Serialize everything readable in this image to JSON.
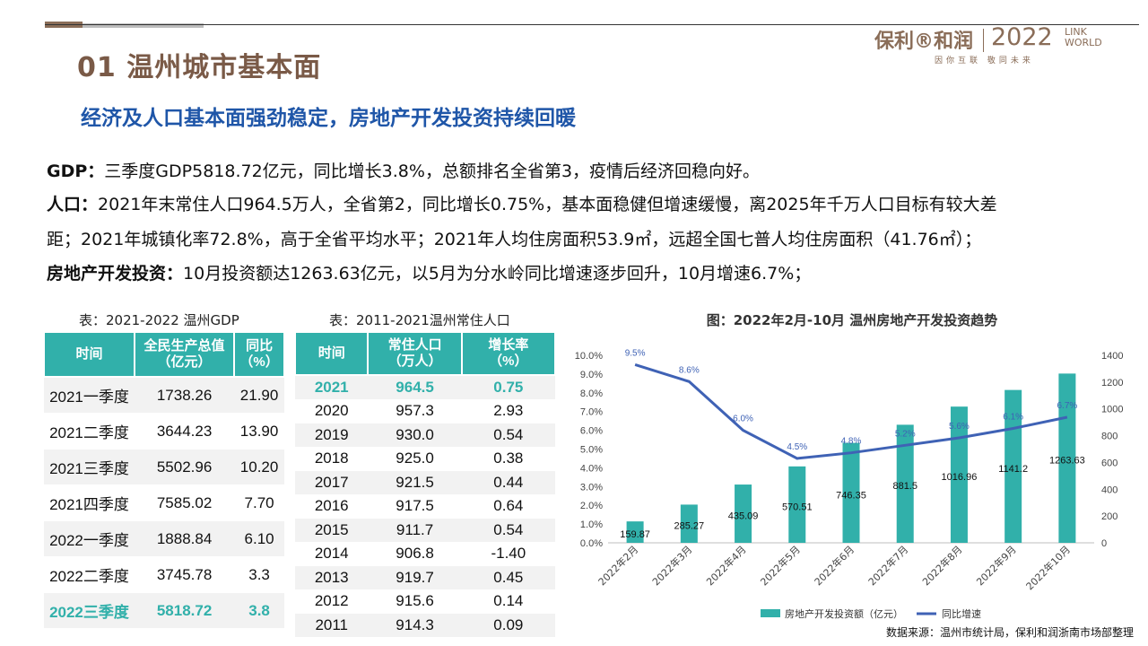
{
  "header": {
    "title": "01 温州城市基本面",
    "subtitle": "经济及人口基本面强劲稳定，房地产开发投资持续回暖",
    "logo": {
      "brand": "保利®和润",
      "year": "2022",
      "tag_line1": "LINK",
      "tag_line2": "WORLD",
      "slogan": "因你互联 敬同未来"
    }
  },
  "paragraphs": [
    {
      "label": "GDP：",
      "text": "三季度GDP5818.72亿元，同比增长3.8%，总额排名全省第3，疫情后经济回稳向好。"
    },
    {
      "label": "人口：",
      "text": "2021年末常住人口964.5万人，全省第2，同比增长0.75%，基本面稳健但增速缓慢，离2025年千万人口目标有较大差"
    },
    {
      "label": "",
      "text": "距；2021年城镇化率72.8%，高于全省平均水平；2021年人均住房面积53.9㎡，远超全国七普人均住房面积（41.76㎡）；"
    },
    {
      "label": "房地产开发投资：",
      "text": "10月投资额达1263.63亿元，以5月为分水岭同比增速逐步回升，10月增速6.7%；"
    }
  ],
  "gdp_table": {
    "caption": "表：2021-2022 温州GDP",
    "headers": [
      [
        "时间"
      ],
      [
        "全民生产总值",
        "（亿元）"
      ],
      [
        "同比",
        "（%）"
      ]
    ],
    "rows": [
      [
        "2021一季度",
        "1738.26",
        "21.90"
      ],
      [
        "2021二季度",
        "3644.23",
        "13.90"
      ],
      [
        "2021三季度",
        "5502.96",
        "10.20"
      ],
      [
        "2021四季度",
        "7585.02",
        "7.70"
      ],
      [
        "2022一季度",
        "1888.84",
        "6.10"
      ],
      [
        "2022二季度",
        "3745.78",
        "3.3"
      ],
      [
        "2022三季度",
        "5818.72",
        "3.8"
      ]
    ],
    "highlight_row": 6
  },
  "pop_table": {
    "caption": "表：2011-2021温州常住人口",
    "headers": [
      [
        "时间"
      ],
      [
        "常住人口",
        "（万人）"
      ],
      [
        "增长率",
        "（%）"
      ]
    ],
    "rows": [
      [
        "2021",
        "964.5",
        "0.75"
      ],
      [
        "2020",
        "957.3",
        "2.93"
      ],
      [
        "2019",
        "930.0",
        "0.54"
      ],
      [
        "2018",
        "925.0",
        "0.38"
      ],
      [
        "2017",
        "921.5",
        "0.44"
      ],
      [
        "2016",
        "917.5",
        "0.64"
      ],
      [
        "2015",
        "911.7",
        "0.54"
      ],
      [
        "2014",
        "906.8",
        "-1.40"
      ],
      [
        "2013",
        "919.7",
        "0.45"
      ],
      [
        "2012",
        "915.6",
        "0.14"
      ],
      [
        "2011",
        "914.3",
        "0.09"
      ]
    ],
    "highlight_row": 0
  },
  "chart_data": {
    "type": "bar",
    "title": "图：2022年2月-10月 温州房地产开发投资趋势",
    "categories": [
      "2022年2月",
      "2022年3月",
      "2022年4月",
      "2022年5月",
      "2022年6月",
      "2022年7月",
      "2022年8月",
      "2022年9月",
      "2022年10月"
    ],
    "series": [
      {
        "name": "房地产开发投资额（亿元）",
        "type": "bar",
        "axis": "right",
        "values": [
          159.87,
          285.27,
          435.09,
          570.51,
          746.35,
          881.5,
          1016.96,
          1141.2,
          1263.63
        ]
      },
      {
        "name": "同比增速",
        "type": "line",
        "axis": "left",
        "values": [
          9.5,
          8.6,
          6.0,
          4.5,
          4.8,
          5.2,
          5.6,
          6.1,
          6.7
        ]
      }
    ],
    "left_axis": {
      "min": 0,
      "max": 10,
      "step": 1,
      "format": "percent1"
    },
    "right_axis": {
      "min": 0,
      "max": 1400,
      "step": 200
    },
    "legend_position": "bottom",
    "colors": {
      "bar": "#31b0aa",
      "line": "#3f62b5"
    }
  },
  "source": "数据来源：温州市统计局，保利和润浙南市场部整理",
  "colors": {
    "accent": "#31b0aa",
    "title_brown": "#7a5a47",
    "subtitle_blue": "#1f56a8"
  }
}
